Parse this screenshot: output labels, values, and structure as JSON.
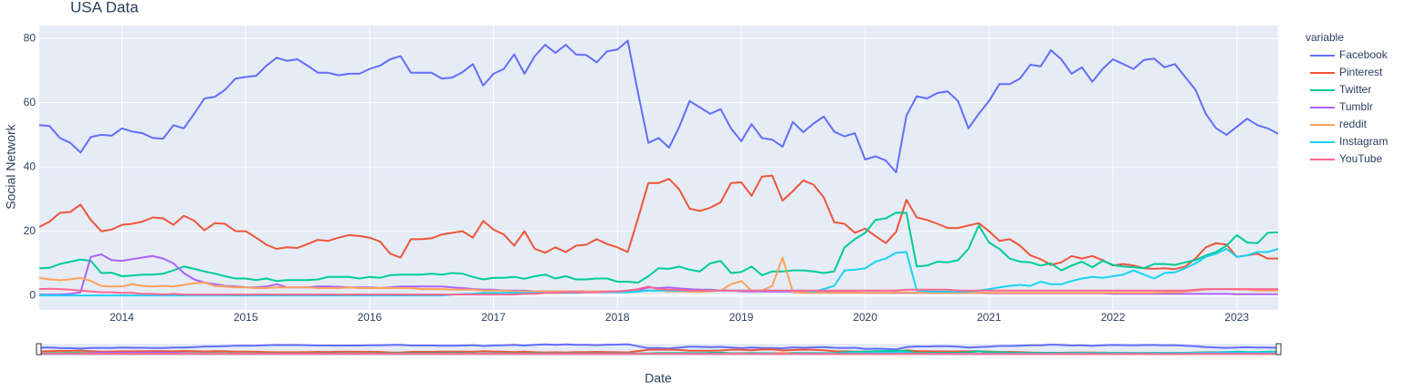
{
  "chart_data": {
    "type": "line",
    "title": "USA Data",
    "x_label": "Date",
    "y_label": "Social Network",
    "legend_title": "variable",
    "x": [
      "2013-05",
      "2013-06",
      "2013-07",
      "2013-08",
      "2013-09",
      "2013-10",
      "2013-11",
      "2013-12",
      "2014-01",
      "2014-02",
      "2014-03",
      "2014-04",
      "2014-05",
      "2014-06",
      "2014-07",
      "2014-08",
      "2014-09",
      "2014-10",
      "2014-11",
      "2014-12",
      "2015-01",
      "2015-02",
      "2015-03",
      "2015-04",
      "2015-05",
      "2015-06",
      "2015-07",
      "2015-08",
      "2015-09",
      "2015-10",
      "2015-11",
      "2015-12",
      "2016-01",
      "2016-02",
      "2016-03",
      "2016-04",
      "2016-05",
      "2016-06",
      "2016-07",
      "2016-08",
      "2016-09",
      "2016-10",
      "2016-11",
      "2016-12",
      "2017-01",
      "2017-02",
      "2017-03",
      "2017-04",
      "2017-05",
      "2017-06",
      "2017-07",
      "2017-08",
      "2017-09",
      "2017-10",
      "2017-11",
      "2017-12",
      "2018-01",
      "2018-02",
      "2018-03",
      "2018-04",
      "2018-05",
      "2018-06",
      "2018-07",
      "2018-08",
      "2018-09",
      "2018-10",
      "2018-11",
      "2018-12",
      "2019-01",
      "2019-02",
      "2019-03",
      "2019-04",
      "2019-05",
      "2019-06",
      "2019-07",
      "2019-08",
      "2019-09",
      "2019-10",
      "2019-11",
      "2019-12",
      "2020-01",
      "2020-02",
      "2020-03",
      "2020-04",
      "2020-05",
      "2020-06",
      "2020-07",
      "2020-08",
      "2020-09",
      "2020-10",
      "2020-11",
      "2020-12",
      "2021-01",
      "2021-02",
      "2021-03",
      "2021-04",
      "2021-05",
      "2021-06",
      "2021-07",
      "2021-08",
      "2021-09",
      "2021-10",
      "2021-11",
      "2021-12",
      "2022-01",
      "2022-02",
      "2022-03",
      "2022-04",
      "2022-05",
      "2022-06",
      "2022-07",
      "2022-08",
      "2022-09",
      "2022-10",
      "2022-11",
      "2022-12",
      "2023-01",
      "2023-02",
      "2023-03",
      "2023-04",
      "2023-05"
    ],
    "series": [
      {
        "name": "Facebook",
        "color": "#636efa",
        "values": [
          53,
          52.7,
          49,
          47.5,
          44.5,
          49.3,
          50,
          49.7,
          52,
          51,
          50.5,
          49,
          48.8,
          53,
          52,
          56.5,
          61.3,
          61.8,
          64,
          67.5,
          68,
          68.3,
          71.5,
          74,
          73,
          73.5,
          71.5,
          69.3,
          69.3,
          68.5,
          69,
          69,
          70.5,
          71.5,
          73.5,
          74.5,
          69.3,
          69.3,
          69.3,
          67.5,
          67.8,
          69.5,
          72,
          65.3,
          69,
          70.5,
          75,
          69,
          74.5,
          78,
          75.5,
          78,
          75,
          74.8,
          72.5,
          76,
          76.5,
          79.3,
          63,
          47.5,
          49,
          46,
          52.5,
          60.5,
          58.5,
          56.5,
          58,
          52,
          48,
          53.3,
          49,
          48.5,
          46.3,
          54,
          50.8,
          53.5,
          55.7,
          51,
          49.5,
          50.5,
          42.3,
          43.3,
          42,
          38.3,
          56,
          62,
          61.3,
          63,
          63.5,
          60.5,
          52,
          56.5,
          60.5,
          65.8,
          65.8,
          67.5,
          71.8,
          71.3,
          76.3,
          73.5,
          69,
          71,
          66.5,
          70.5,
          73.5,
          72,
          70.5,
          73.3,
          73.7,
          71,
          72,
          68,
          64,
          56.5,
          52,
          50,
          52.5,
          55,
          53,
          52,
          50.3
        ]
      },
      {
        "name": "Pinterest",
        "color": "#EF553B",
        "values": [
          21.3,
          23,
          25.7,
          26,
          28.3,
          23.5,
          20,
          20.5,
          22,
          22.3,
          23,
          24.3,
          24,
          22,
          24.8,
          23.3,
          20.3,
          22.5,
          22.3,
          20,
          20,
          18,
          15.8,
          14.5,
          15,
          14.8,
          16,
          17.3,
          17,
          18,
          18.8,
          18.5,
          18,
          16.8,
          13,
          11.8,
          17.5,
          17.5,
          17.8,
          19,
          19.5,
          20,
          18,
          23.2,
          20.5,
          19,
          15.5,
          20,
          14.5,
          13.3,
          15,
          13.5,
          15.5,
          15.8,
          17.5,
          16,
          15,
          13.5,
          24,
          35,
          35,
          36.3,
          33,
          27,
          26.3,
          27.3,
          29,
          35,
          35.2,
          31,
          37,
          37.3,
          29.5,
          32.5,
          35.8,
          34.5,
          30.5,
          22.8,
          22.3,
          19.5,
          20.8,
          18.5,
          16.3,
          19.8,
          29.8,
          24.3,
          23.5,
          22.3,
          21,
          21,
          21.8,
          22.5,
          20,
          17,
          17.5,
          15.5,
          12.5,
          11.3,
          9.5,
          10.3,
          12.3,
          11.5,
          12.3,
          11,
          9.3,
          9.8,
          9.3,
          8.5,
          8.3,
          8.5,
          8.2,
          9,
          11.5,
          15,
          16.3,
          15.8,
          12,
          12.5,
          13,
          11.5,
          11.5
        ]
      },
      {
        "name": "Twitter",
        "color": "#00cc96",
        "values": [
          8.5,
          8.6,
          9.8,
          10.5,
          11.2,
          10.8,
          7,
          7.1,
          6,
          6.2,
          6.5,
          6.5,
          6.8,
          7.8,
          9,
          8.3,
          7.5,
          6.8,
          6,
          5.3,
          5.3,
          4.8,
          5.3,
          4.5,
          4.8,
          4.8,
          4.8,
          5,
          5.8,
          5.8,
          5.8,
          5.3,
          5.8,
          5.5,
          6.3,
          6.5,
          6.5,
          6.5,
          6.8,
          6.5,
          7,
          6.8,
          5.8,
          5,
          5.5,
          5.5,
          5.8,
          5.2,
          6,
          6.5,
          5.3,
          6,
          5,
          5,
          5.3,
          5.3,
          4.3,
          4.3,
          4,
          6,
          8.5,
          8.3,
          9,
          8,
          7.5,
          10,
          10.8,
          7,
          7.3,
          9,
          6.3,
          7.5,
          7.5,
          7.8,
          7.8,
          7.5,
          7,
          7.5,
          15,
          17.5,
          19.5,
          23.5,
          24,
          25.8,
          25.7,
          9,
          9.3,
          10.5,
          10.3,
          11,
          14.5,
          21.8,
          16.5,
          14.5,
          11.5,
          10.5,
          10.3,
          9.3,
          10,
          7.8,
          9.3,
          10.5,
          8.8,
          10.8,
          9.5,
          9,
          8.8,
          8.5,
          9.8,
          9.8,
          9.5,
          10.3,
          11,
          12.5,
          13.5,
          15.5,
          18.8,
          16.5,
          16.3,
          19.5,
          19.7
        ]
      },
      {
        "name": "Tumblr",
        "color": "#ab63fa",
        "values": [
          0.3,
          0.3,
          0.3,
          0.5,
          1,
          12,
          12.8,
          11,
          10.8,
          11.3,
          11.8,
          12.3,
          11.5,
          10,
          7,
          5,
          4,
          3.5,
          3,
          2.8,
          2.5,
          2.5,
          2.8,
          3.5,
          2.5,
          2.5,
          2.5,
          2.8,
          2.8,
          2.7,
          2.5,
          2.5,
          2.5,
          2.3,
          2.5,
          2.8,
          2.8,
          2.8,
          2.8,
          2.8,
          2.5,
          2.3,
          2,
          1.8,
          1.8,
          1.5,
          1.5,
          1.5,
          1.3,
          1.3,
          1.3,
          1.3,
          1.3,
          1.2,
          1.2,
          1.2,
          1.2,
          1.3,
          1.5,
          2.5,
          2.3,
          2.5,
          2.2,
          2,
          1.8,
          1.8,
          1.5,
          1.5,
          1.3,
          1.2,
          1.3,
          1.2,
          1.2,
          1.2,
          1,
          1,
          1,
          1,
          1,
          1,
          0.8,
          0.8,
          0.8,
          0.8,
          0.8,
          0.8,
          0.8,
          0.8,
          0.8,
          0.8,
          0.8,
          0.8,
          0.7,
          0.7,
          0.7,
          0.7,
          0.7,
          0.7,
          0.7,
          0.7,
          0.7,
          0.7,
          0.7,
          0.7,
          0.5,
          0.5,
          0.5,
          0.5,
          0.5,
          0.5,
          0.5,
          0.5,
          0.5,
          0.5,
          0.5,
          0.5,
          0.4,
          0.4,
          0.4,
          0.4,
          0.4
        ]
      },
      {
        "name": "reddit",
        "color": "#FFA15A",
        "values": [
          5.5,
          5,
          4.8,
          5,
          5.5,
          4.5,
          3,
          2.8,
          2.8,
          3.5,
          3,
          2.8,
          3,
          2.8,
          3.3,
          3.8,
          4,
          3,
          2.8,
          2.5,
          2.5,
          2.3,
          2.3,
          2.5,
          2.5,
          2.5,
          2.5,
          2.3,
          2.3,
          2.3,
          2.5,
          2.3,
          2.3,
          2.3,
          2.3,
          2.3,
          2.3,
          2,
          2,
          2,
          1.8,
          1.8,
          1.8,
          1.5,
          1.5,
          1.5,
          1.3,
          1.3,
          1.3,
          1.3,
          1.3,
          1.3,
          1.3,
          1.3,
          1.3,
          1.3,
          1.3,
          1.3,
          1.3,
          1.5,
          1.5,
          1.3,
          1.3,
          1.2,
          1.2,
          1.3,
          1.5,
          3.5,
          4.5,
          1.5,
          1.5,
          3,
          11.8,
          1,
          0.8,
          0.8,
          0.8,
          0.8,
          0.8,
          0.8,
          0.8,
          0.8,
          0.8,
          1,
          1,
          0.8,
          0.8,
          0.8,
          0.8,
          0.8,
          0.8,
          0.8,
          0.8,
          0.8,
          0.8,
          0.8,
          0.8,
          0.8,
          0.8,
          0.8,
          0.8,
          0.8,
          0.8,
          0.8,
          0.8,
          0.8,
          0.8,
          0.8,
          0.8,
          1,
          1,
          1.2,
          1.5,
          1.8,
          2,
          2,
          1.8,
          1.8,
          1.5,
          1.5,
          1.5
        ]
      },
      {
        "name": "Instagram",
        "color": "#19d3f3",
        "values": [
          0,
          0,
          0,
          0,
          0,
          0,
          0,
          0,
          0,
          0,
          0,
          0,
          0,
          0,
          0,
          0,
          0,
          0,
          0,
          0,
          0,
          0,
          0,
          0,
          0,
          0,
          0,
          0,
          0,
          0,
          0,
          0,
          0,
          0,
          0,
          0,
          0,
          0,
          0,
          0,
          0.2,
          0.5,
          0.5,
          0.8,
          0.8,
          0.8,
          0.8,
          0.8,
          0.8,
          0.8,
          0.8,
          0.8,
          0.8,
          1,
          1,
          1,
          1,
          1,
          1.2,
          1.5,
          1.5,
          1.5,
          1.5,
          1.5,
          1.5,
          1.5,
          1.5,
          1.5,
          1.5,
          1.5,
          1.5,
          1.5,
          1.5,
          1.5,
          1.5,
          1.2,
          2,
          3,
          7.8,
          8,
          8.5,
          10.5,
          11.5,
          13.3,
          13.5,
          1.5,
          1.3,
          1.2,
          1.2,
          1.2,
          1.2,
          1.5,
          2,
          2.5,
          3,
          3.3,
          3,
          4.3,
          3.5,
          3.5,
          4.5,
          5.3,
          5.8,
          5.5,
          6,
          6.5,
          7.8,
          6.5,
          5.3,
          7,
          7.2,
          8.5,
          10,
          12,
          13,
          14.5,
          12,
          12.5,
          13.5,
          13.5,
          14.5
        ]
      },
      {
        "name": "YouTube",
        "color": "#FF6692",
        "values": [
          2,
          2.1,
          2,
          1.8,
          1.5,
          1.3,
          1,
          1,
          0.8,
          0.8,
          0.5,
          0.5,
          0.3,
          0.5,
          0.3,
          0.3,
          0.3,
          0.3,
          0.3,
          0.3,
          0.3,
          0.3,
          0.3,
          0.3,
          0.3,
          0.3,
          0.3,
          0.3,
          0.3,
          0.3,
          0.3,
          0.3,
          0.3,
          0.3,
          0.3,
          0.3,
          0.3,
          0.3,
          0.3,
          0.3,
          0.3,
          0.3,
          0.3,
          0.3,
          0.3,
          0.3,
          0.3,
          0.5,
          0.5,
          0.8,
          0.8,
          1,
          1,
          1,
          1,
          1.2,
          1.3,
          1.5,
          2,
          2.8,
          2,
          1.8,
          1.8,
          1.5,
          1.5,
          1.5,
          1.5,
          1.5,
          1.5,
          1.5,
          1.5,
          1.5,
          1.5,
          1.5,
          1.5,
          1.5,
          1.5,
          1.5,
          1.5,
          1.5,
          1.5,
          1.5,
          1.5,
          1.5,
          1.8,
          1.8,
          1.8,
          1.8,
          1.8,
          1.5,
          1.5,
          1.5,
          1.5,
          1.5,
          1.5,
          1.5,
          1.5,
          1.5,
          1.5,
          1.5,
          1.5,
          1.5,
          1.5,
          1.5,
          1.5,
          1.5,
          1.5,
          1.5,
          1.5,
          1.5,
          1.5,
          1.5,
          1.8,
          2,
          2,
          2,
          2,
          2,
          2,
          2,
          2
        ]
      }
    ],
    "xlim": [
      "2013-05",
      "2023-05"
    ],
    "xticks": [
      {
        "value": "2014-01",
        "label": "2014"
      },
      {
        "value": "2015-01",
        "label": "2015"
      },
      {
        "value": "2016-01",
        "label": "2016"
      },
      {
        "value": "2017-01",
        "label": "2017"
      },
      {
        "value": "2018-01",
        "label": "2018"
      },
      {
        "value": "2019-01",
        "label": "2019"
      },
      {
        "value": "2020-01",
        "label": "2020"
      },
      {
        "value": "2021-01",
        "label": "2021"
      },
      {
        "value": "2022-01",
        "label": "2022"
      },
      {
        "value": "2023-01",
        "label": "2023"
      }
    ],
    "ylim": [
      -4.5,
      84
    ],
    "yticks": [
      0,
      20,
      40,
      60,
      80
    ],
    "grid": true,
    "legend": "right",
    "range_slider": true
  }
}
